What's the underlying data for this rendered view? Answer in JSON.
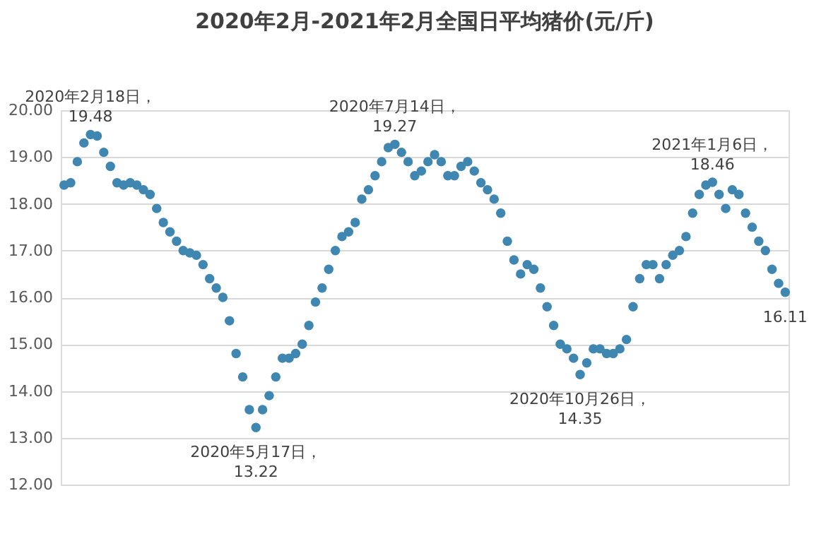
{
  "chart_data": {
    "type": "scatter",
    "title": "2020年2月-2021年2月全国日平均猪价(元/斤)",
    "categories": [
      null,
      null,
      null,
      null,
      null,
      null,
      null,
      null,
      null,
      null,
      null,
      null,
      null,
      null,
      null,
      null,
      null,
      null,
      null,
      null,
      null,
      null,
      null,
      null,
      null,
      null,
      null,
      null,
      null,
      null,
      null,
      null,
      null,
      null,
      null,
      null,
      null,
      null,
      null,
      null,
      null,
      null,
      null,
      null,
      null,
      null,
      null,
      null,
      null,
      null,
      null,
      null,
      null,
      null,
      null,
      null,
      null,
      null,
      null,
      null,
      null,
      null,
      null,
      null,
      null,
      null,
      null,
      null,
      null,
      null,
      null,
      null,
      null,
      null,
      null,
      null,
      null,
      null,
      null,
      null,
      null,
      null,
      null,
      null,
      null,
      null,
      null,
      null,
      null,
      null,
      null,
      null,
      null,
      null,
      null,
      null,
      null,
      null,
      null,
      null,
      null,
      null,
      null,
      null,
      null,
      null,
      null,
      null,
      null,
      null
    ],
    "series": [
      {
        "color": "#3f87b0",
        "values": [
          18.4,
          18.45,
          18.9,
          19.3,
          19.48,
          19.45,
          19.1,
          18.8,
          18.45,
          18.4,
          18.45,
          18.4,
          18.3,
          18.2,
          17.9,
          17.6,
          17.4,
          17.2,
          17.0,
          16.95,
          16.9,
          16.7,
          16.4,
          16.2,
          16.0,
          15.5,
          14.8,
          14.3,
          13.6,
          13.22,
          13.6,
          13.9,
          14.3,
          14.7,
          14.7,
          14.8,
          15.0,
          15.4,
          15.9,
          16.2,
          16.6,
          17.0,
          17.3,
          17.4,
          17.6,
          18.1,
          18.3,
          18.6,
          18.9,
          19.2,
          19.27,
          19.1,
          18.9,
          18.6,
          18.7,
          18.9,
          19.05,
          18.9,
          18.6,
          18.6,
          18.8,
          18.9,
          18.7,
          18.45,
          18.3,
          18.1,
          17.8,
          17.2,
          16.8,
          16.5,
          16.7,
          16.6,
          16.2,
          15.8,
          15.4,
          15.0,
          14.9,
          14.7,
          14.35,
          14.6,
          14.9,
          14.9,
          14.8,
          14.8,
          14.9,
          15.1,
          15.8,
          16.4,
          16.7,
          16.7,
          16.4,
          16.7,
          16.9,
          17.0,
          17.3,
          17.8,
          18.2,
          18.4,
          18.46,
          18.2,
          17.9,
          18.3,
          18.2,
          17.8,
          17.5,
          17.2,
          17.0,
          16.6,
          16.3,
          16.11
        ]
      }
    ],
    "ylim": [
      12,
      20
    ],
    "yticks": [
      {
        "value": 12,
        "label": "12.00"
      },
      {
        "value": 13,
        "label": "13.00"
      },
      {
        "value": 14,
        "label": "14.00"
      },
      {
        "value": 15,
        "label": "15.00"
      },
      {
        "value": 16,
        "label": "16.00"
      },
      {
        "value": 17,
        "label": "17.00"
      },
      {
        "value": 18,
        "label": "18.00"
      },
      {
        "value": 19,
        "label": "19.00"
      },
      {
        "value": 20,
        "label": "20.00"
      }
    ],
    "tick_labels": "y",
    "grid": "y",
    "legend": false,
    "marker": "circle",
    "annotations": [
      {
        "text": "2020年2月18日，\n19.48",
        "y": 19.48
      },
      {
        "text": "2020年5月17日，\n13.22",
        "y": 13.22
      },
      {
        "text": "2020年7月14日，\n19.27",
        "y": 19.27
      },
      {
        "text": "2020年10月26日，\n14.35",
        "y": 14.35
      },
      {
        "text": "2021年1月6日，\n18.46",
        "y": 18.46
      },
      {
        "text": "16.11",
        "y": 16.11
      }
    ]
  }
}
